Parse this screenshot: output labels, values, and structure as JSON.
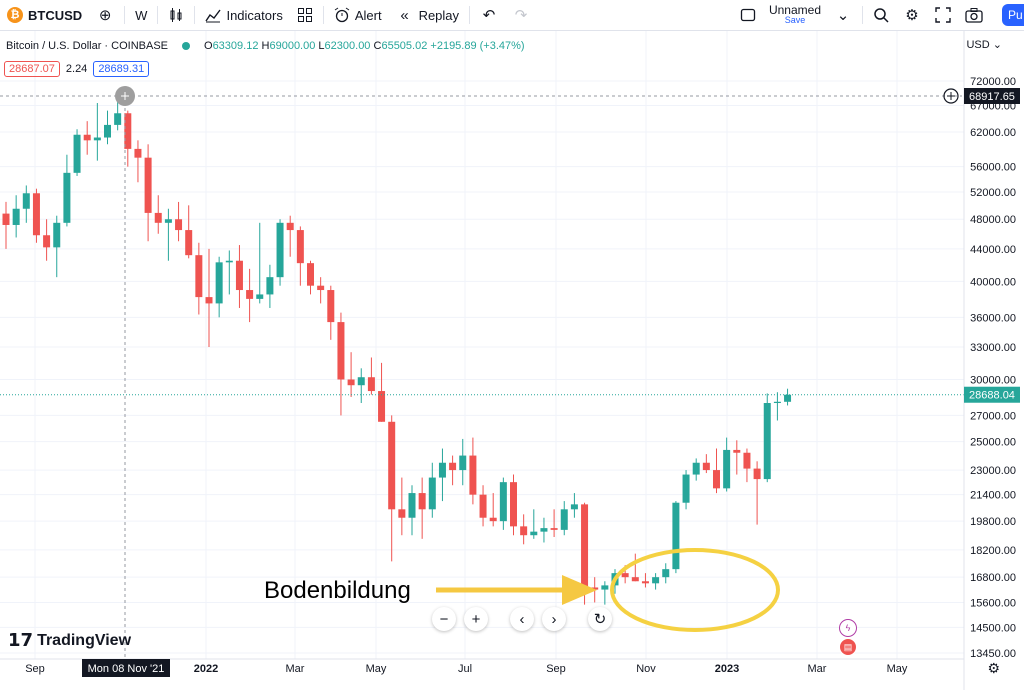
{
  "toolbar": {
    "logo_glyph": "₿",
    "symbol": "BTCUSD",
    "interval": "W",
    "indicators": "Indicators",
    "alert": "Alert",
    "replay": "Replay",
    "layout_name": "Unnamed",
    "layout_save": "Save",
    "publish": "Pu"
  },
  "legend": {
    "title": "Bitcoin / U.S. Dollar · COINBASE",
    "o_label": "O",
    "o": "63309.12",
    "h_label": "H",
    "h": "69000.00",
    "l_label": "L",
    "l": "62300.00",
    "c_label": "C",
    "c": "65505.02",
    "change": "+2195.89 (+3.47%)"
  },
  "bid": "28687.07",
  "spread": "2.24",
  "ask": "28689.31",
  "currency": "USD",
  "crosshair_price": "68917.65",
  "crosshair_time": "Mon 08 Nov '21",
  "last_price": "28688.04",
  "annotation": "Bodenbildung",
  "brand": "TradingView",
  "colors": {
    "up": "#26a69a",
    "down": "#ef5350",
    "accent": "#2962ff",
    "highlight": "#f5d142"
  },
  "chart_data": {
    "type": "candlestick",
    "symbol": "BTCUSD",
    "interval": "W",
    "y_scale": "log",
    "ylim": [
      13450,
      80000
    ],
    "y_ticks": [
      "72000.00",
      "67000.00",
      "62000.00",
      "56000.00",
      "52000.00",
      "48000.00",
      "44000.00",
      "40000.00",
      "36000.00",
      "33000.00",
      "30000.00",
      "27000.00",
      "25000.00",
      "23000.00",
      "21400.00",
      "19800.00",
      "18200.00",
      "16800.00",
      "15600.00",
      "14500.00",
      "13450.00"
    ],
    "x_ticks": [
      "Sep",
      "2022",
      "Mar",
      "May",
      "Jul",
      "Sep",
      "Nov",
      "2023",
      "Mar",
      "May"
    ],
    "candles": [
      [
        48800,
        50500,
        44000,
        47200
      ],
      [
        47200,
        51500,
        45500,
        49500
      ],
      [
        49500,
        53000,
        47500,
        51800
      ],
      [
        51800,
        52500,
        44800,
        45800
      ],
      [
        45800,
        48000,
        42500,
        44200
      ],
      [
        44200,
        48500,
        40500,
        47500
      ],
      [
        47500,
        58000,
        47000,
        55000
      ],
      [
        55000,
        62500,
        54500,
        61500
      ],
      [
        61500,
        64000,
        58000,
        60500
      ],
      [
        60500,
        67500,
        57000,
        61000
      ],
      [
        61000,
        66000,
        59800,
        63300
      ],
      [
        63300,
        69000,
        62300,
        65500
      ],
      [
        65500,
        66000,
        56000,
        59000
      ],
      [
        59000,
        60500,
        53500,
        57500
      ],
      [
        57500,
        59800,
        45000,
        48900
      ],
      [
        48900,
        51500,
        46000,
        47500
      ],
      [
        47500,
        49500,
        42500,
        48000
      ],
      [
        48000,
        50500,
        45000,
        46500
      ],
      [
        46500,
        50000,
        42800,
        43200
      ],
      [
        43200,
        44800,
        36300,
        38200
      ],
      [
        38200,
        44000,
        33000,
        37500
      ],
      [
        37500,
        43000,
        36000,
        42300
      ],
      [
        42300,
        43800,
        38500,
        42500
      ],
      [
        42500,
        44500,
        37000,
        39000
      ],
      [
        39000,
        41500,
        35500,
        38000
      ],
      [
        38000,
        47500,
        37500,
        38500
      ],
      [
        38500,
        42000,
        37000,
        40500
      ],
      [
        40500,
        48000,
        39500,
        47500
      ],
      [
        47500,
        48500,
        43000,
        46500
      ],
      [
        46500,
        47000,
        39500,
        42200
      ],
      [
        42200,
        42500,
        38500,
        39500
      ],
      [
        39500,
        40500,
        37500,
        39000
      ],
      [
        39000,
        39500,
        33700,
        35500
      ],
      [
        35500,
        36500,
        27000,
        30000
      ],
      [
        30000,
        32500,
        28500,
        29500
      ],
      [
        29500,
        31000,
        28000,
        30200
      ],
      [
        30200,
        32000,
        28700,
        29000
      ],
      [
        29000,
        31500,
        26500,
        26500
      ],
      [
        26500,
        27000,
        17600,
        20500
      ],
      [
        20500,
        22500,
        19000,
        20000
      ],
      [
        20000,
        22000,
        19000,
        21500
      ],
      [
        21500,
        22500,
        18800,
        20500
      ],
      [
        20500,
        23500,
        20000,
        22500
      ],
      [
        22500,
        24500,
        21000,
        23500
      ],
      [
        23500,
        24000,
        22000,
        23000
      ],
      [
        23000,
        25200,
        22000,
        24000
      ],
      [
        24000,
        25300,
        20800,
        21400
      ],
      [
        21400,
        22000,
        19500,
        20000
      ],
      [
        20000,
        21500,
        19500,
        19800
      ],
      [
        19800,
        22500,
        19300,
        22200
      ],
      [
        22200,
        22700,
        19000,
        19500
      ],
      [
        19500,
        20200,
        18500,
        19000
      ],
      [
        19000,
        20500,
        18800,
        19200
      ],
      [
        19200,
        20000,
        18600,
        19400
      ],
      [
        19400,
        20500,
        18900,
        19300
      ],
      [
        19300,
        21000,
        19000,
        20500
      ],
      [
        20500,
        21500,
        20000,
        20800
      ],
      [
        20800,
        20900,
        15500,
        16300
      ],
      [
        16300,
        16800,
        15600,
        16200
      ],
      [
        16200,
        16600,
        15500,
        16400
      ],
      [
        16400,
        17200,
        16000,
        17000
      ],
      [
        17000,
        17400,
        16500,
        16800
      ],
      [
        16800,
        18000,
        16600,
        16600
      ],
      [
        16600,
        17000,
        16300,
        16500
      ],
      [
        16500,
        17000,
        16200,
        16800
      ],
      [
        16800,
        17500,
        16500,
        17200
      ],
      [
        17200,
        21000,
        17000,
        20900
      ],
      [
        20900,
        23000,
        20500,
        22700
      ],
      [
        22700,
        23800,
        22300,
        23500
      ],
      [
        23500,
        24100,
        22800,
        23000
      ],
      [
        23000,
        24500,
        21500,
        21800
      ],
      [
        21800,
        25300,
        21600,
        24400
      ],
      [
        24400,
        25100,
        22700,
        24200
      ],
      [
        24200,
        24500,
        22200,
        23100
      ],
      [
        23100,
        23600,
        19600,
        22400
      ],
      [
        22400,
        28800,
        22200,
        28000
      ],
      [
        28000,
        28900,
        26600,
        28100
      ],
      [
        28100,
        29200,
        27800,
        28688
      ]
    ]
  }
}
